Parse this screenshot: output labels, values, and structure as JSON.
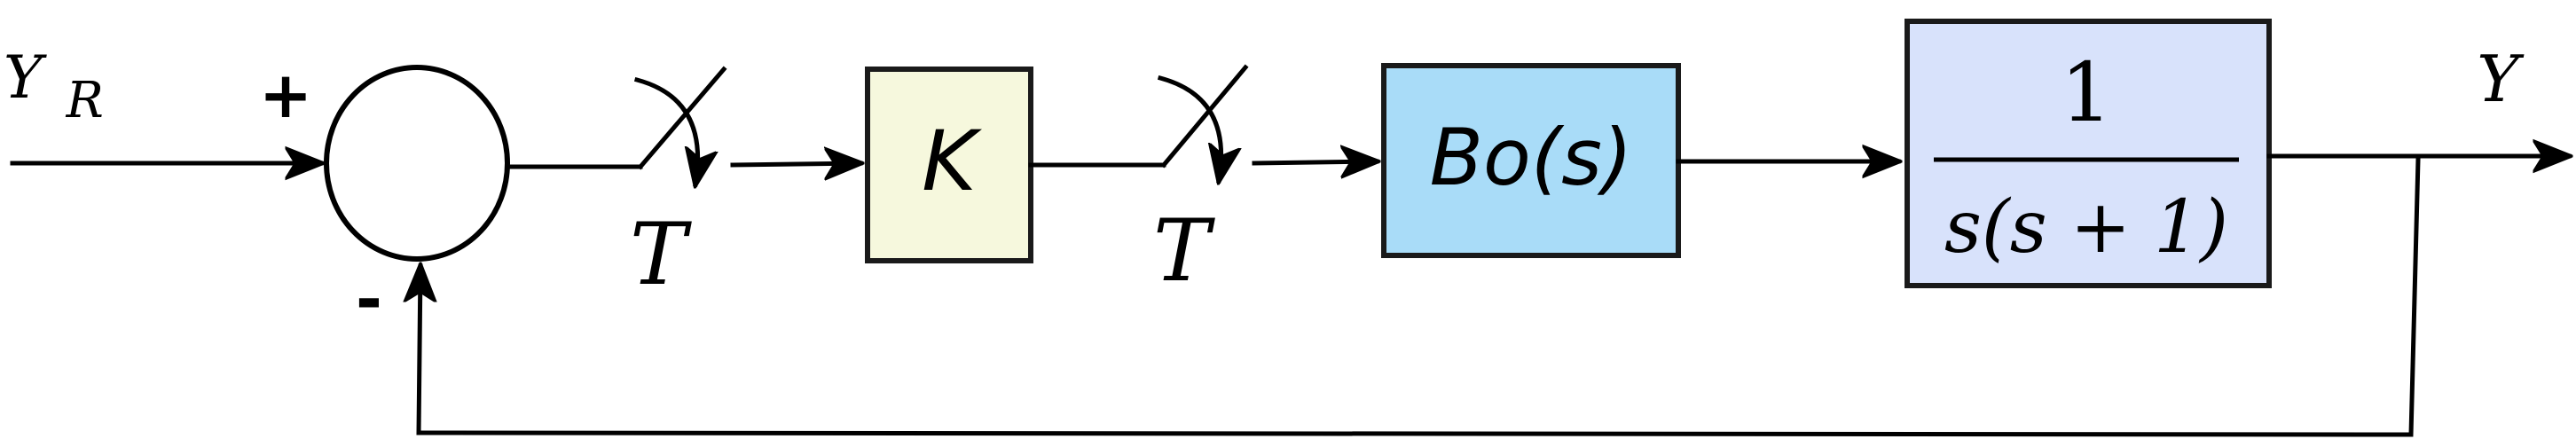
{
  "diagram": {
    "input_label_main": "Y",
    "input_label_sub": "R",
    "output_label": "Y",
    "sum_plus_sign": "+",
    "sum_minus_sign": "-",
    "sampler1_label": "T",
    "sampler2_label": "T",
    "gain_block_label": "K",
    "hold_block_label": "Bo(s)",
    "plant_numerator": "1",
    "plant_denominator": "s(s + 1)",
    "colors": {
      "gain_block_fill": "#f6f8dd",
      "hold_block_fill": "#a9dcf8",
      "plant_block_fill": "#d8e2fb",
      "stroke": "#000000"
    }
  }
}
